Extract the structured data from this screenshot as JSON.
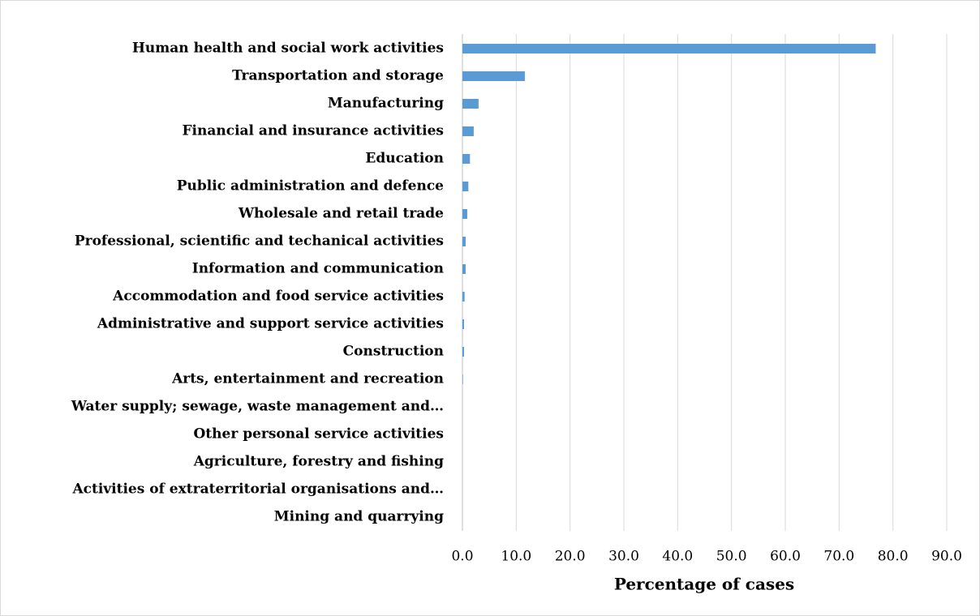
{
  "chart_data": {
    "type": "barh",
    "x_label": "Percentage of cases",
    "categories": [
      "Human health and social work activities",
      "Transportation and storage",
      "Manufacturing",
      "Financial and insurance activities",
      "Education",
      "Public administration and defence",
      "Wholesale and retail trade",
      "Professional, scientific and techanical activities",
      "Information and communication",
      "Accommodation and food service activities",
      "Administrative and support service activities",
      "Construction",
      "Arts, entertainment and recreation",
      "Water supply; sewage, waste management and…",
      "Other personal service activities",
      "Agriculture, forestry and fishing",
      "Activities of extraterritorial organisations and…",
      "Mining and quarrying"
    ],
    "values": [
      76.8,
      11.6,
      3.0,
      2.1,
      1.4,
      1.1,
      0.9,
      0.6,
      0.6,
      0.4,
      0.3,
      0.3,
      0.1,
      0.0,
      0.0,
      0.0,
      0.0,
      0.0
    ],
    "color": "#5b9bd5",
    "xlim": [
      0,
      90
    ],
    "xticks": [
      {
        "value": 0,
        "label": "0.0"
      },
      {
        "value": 10,
        "label": "10.0"
      },
      {
        "value": 20,
        "label": "20.0"
      },
      {
        "value": 30,
        "label": "30.0"
      },
      {
        "value": 40,
        "label": "40.0"
      },
      {
        "value": 50,
        "label": "50.0"
      },
      {
        "value": 60,
        "label": "60.0"
      },
      {
        "value": 70,
        "label": "70.0"
      },
      {
        "value": 80,
        "label": "80.0"
      },
      {
        "value": 90,
        "label": "90.0"
      }
    ],
    "grid": true
  }
}
